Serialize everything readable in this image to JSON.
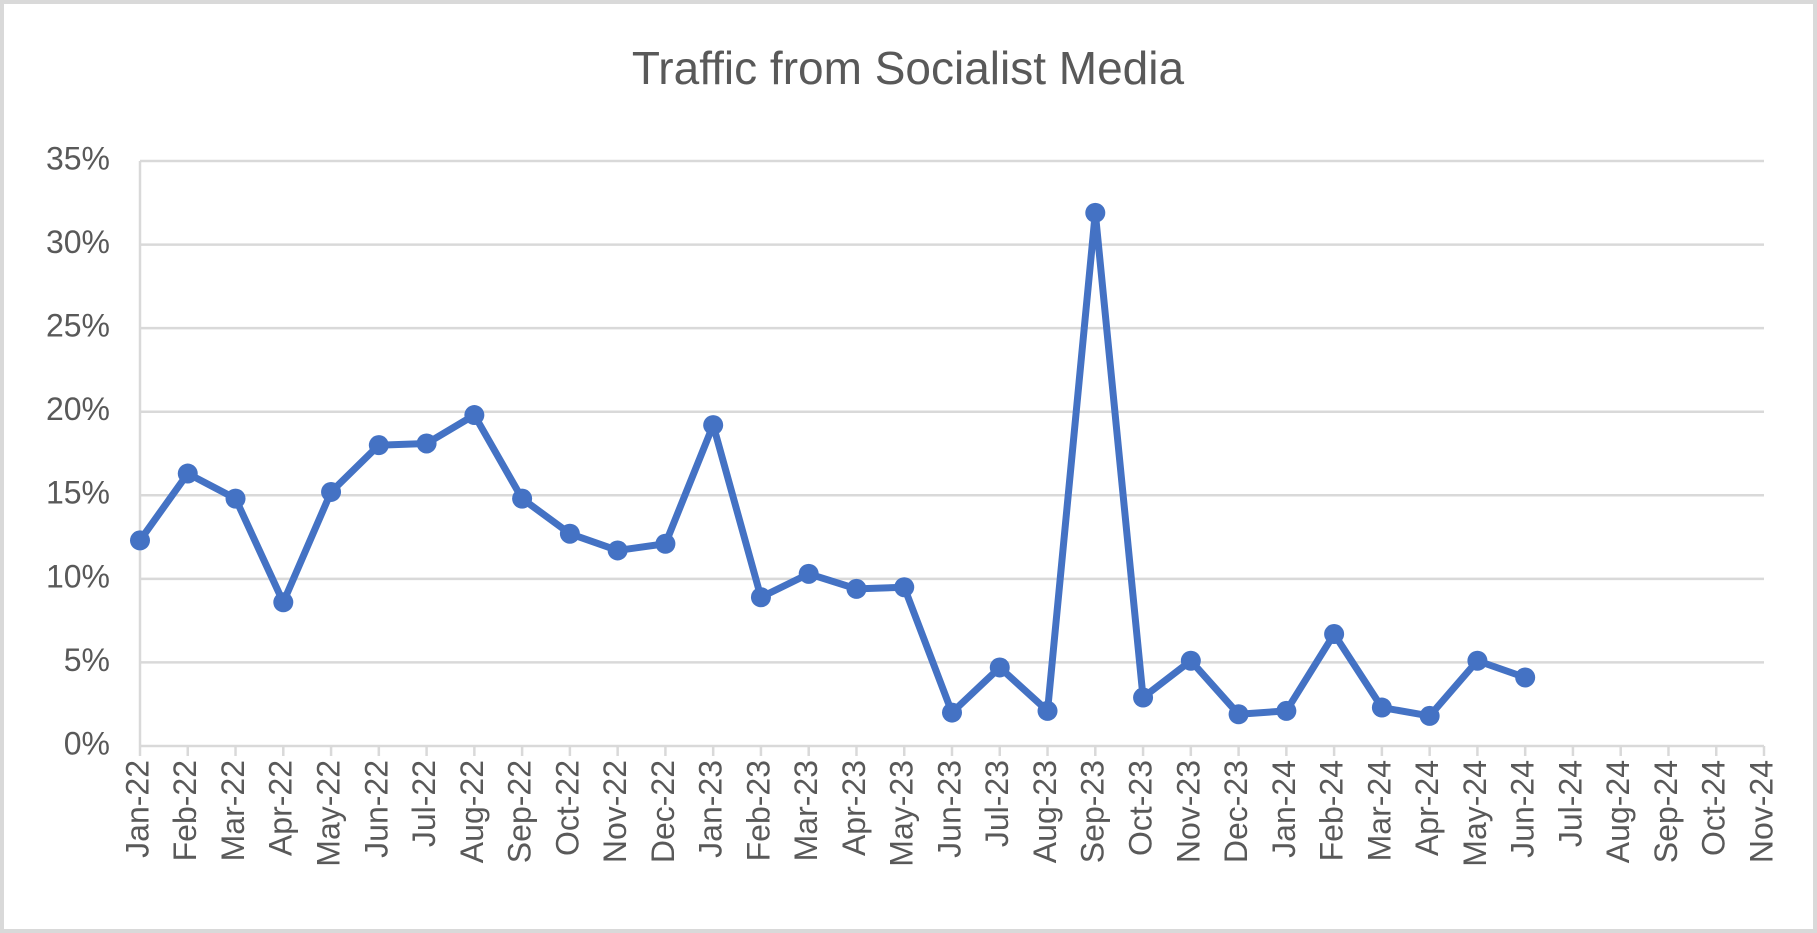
{
  "chart_data": {
    "type": "line",
    "title": "Traffic from Socialist Media",
    "categories": [
      "Jan-22",
      "Feb-22",
      "Mar-22",
      "Apr-22",
      "May-22",
      "Jun-22",
      "Jul-22",
      "Aug-22",
      "Sep-22",
      "Oct-22",
      "Nov-22",
      "Dec-22",
      "Jan-23",
      "Feb-23",
      "Mar-23",
      "Apr-23",
      "May-23",
      "Jun-23",
      "Jul-23",
      "Aug-23",
      "Sep-23",
      "Oct-23",
      "Nov-23",
      "Dec-23",
      "Jan-24",
      "Feb-24",
      "Mar-24",
      "Apr-24",
      "May-24",
      "Jun-24",
      "Jul-24",
      "Aug-24",
      "Sep-24",
      "Oct-24",
      "Nov-24"
    ],
    "values": [
      12.3,
      16.3,
      14.8,
      8.6,
      15.2,
      18.0,
      18.1,
      19.8,
      14.8,
      12.7,
      11.7,
      12.1,
      19.2,
      8.9,
      10.3,
      9.4,
      9.5,
      2.0,
      4.7,
      2.1,
      31.9,
      2.9,
      5.1,
      1.9,
      2.1,
      6.7,
      2.3,
      1.8,
      5.1,
      4.1,
      null,
      null,
      null,
      null,
      null
    ],
    "color": "#4472c4",
    "ylim": [
      0,
      35
    ],
    "yticks": [
      {
        "value": 0,
        "label": "0%"
      },
      {
        "value": 5,
        "label": "5%"
      },
      {
        "value": 10,
        "label": "10%"
      },
      {
        "value": 15,
        "label": "15%"
      },
      {
        "value": 20,
        "label": "20%"
      },
      {
        "value": 25,
        "label": "25%"
      },
      {
        "value": 30,
        "label": "30%"
      },
      {
        "value": 35,
        "label": "35%"
      }
    ],
    "grid": true
  }
}
